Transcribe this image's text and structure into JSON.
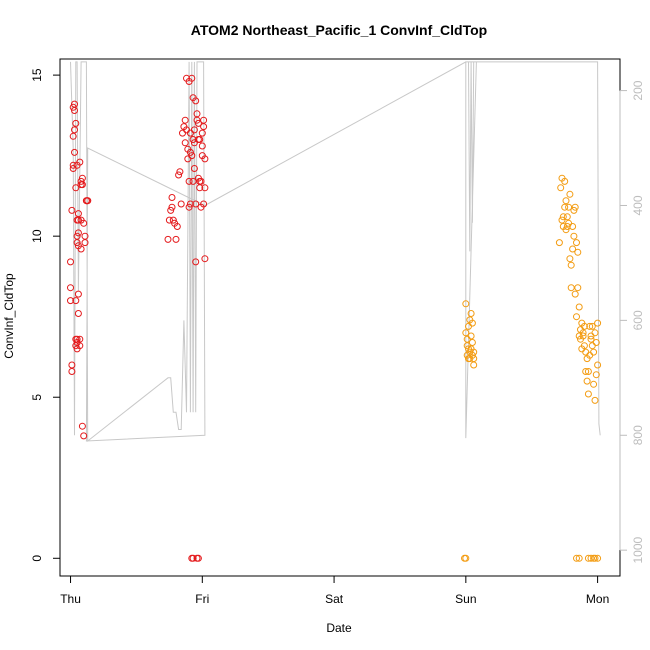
{
  "chart_data": {
    "type": "scatter",
    "title": "ATOM2 Northeast_Pacific_1 ConvInf_CldTop",
    "xlabel": "Date",
    "ylabel": "ConvInf_CldTop",
    "x_ticks": [
      "Thu",
      "Fri",
      "Sat",
      "Sun",
      "Mon"
    ],
    "xlim": [
      -0.08,
      4.17
    ],
    "y_ticks": [
      0,
      5,
      10,
      15
    ],
    "ylim": [
      -0.55,
      15.5
    ],
    "y2_ticks": [
      200,
      400,
      600,
      800,
      1000
    ],
    "y2lim": [
      1045,
      145
    ],
    "y2_reversed": true,
    "grid": false,
    "colors": {
      "series_red": "#e41a1c",
      "series_orange": "#f39c12",
      "pressure_line": "#c8c8c8",
      "right_axis": "#bdbdbd",
      "frame": "#000000"
    },
    "series": [
      {
        "color": "#e41a1c",
        "x": [
          0.0,
          0.0,
          0.0,
          0.01,
          0.01,
          0.01,
          0.02,
          0.02,
          0.02,
          0.02,
          0.03,
          0.03,
          0.03,
          0.03,
          0.04,
          0.04,
          0.04,
          0.04,
          0.04,
          0.05,
          0.05,
          0.05,
          0.05,
          0.05,
          0.05,
          0.05,
          0.06,
          0.06,
          0.06,
          0.06,
          0.06,
          0.06,
          0.07,
          0.07,
          0.07,
          0.08,
          0.08,
          0.08,
          0.08,
          0.09,
          0.09,
          0.09,
          0.1,
          0.1,
          0.11,
          0.11,
          0.12,
          0.12,
          0.13,
          0.13,
          0.74,
          0.75,
          0.76,
          0.77,
          0.77,
          0.78,
          0.79,
          0.8,
          0.81,
          0.82,
          0.83,
          0.84,
          0.85,
          0.86,
          0.87,
          0.87,
          0.88,
          0.88,
          0.89,
          0.89,
          0.9,
          0.9,
          0.9,
          0.91,
          0.91,
          0.91,
          0.92,
          0.92,
          0.93,
          0.93,
          0.93,
          0.94,
          0.94,
          0.94,
          0.95,
          0.95,
          0.95,
          0.96,
          0.96,
          0.97,
          0.97,
          0.97,
          0.98,
          0.98,
          0.98,
          0.99,
          0.99,
          1.0,
          1.0,
          1.0,
          1.01,
          1.01,
          1.01,
          1.02,
          1.02,
          1.02,
          0.92,
          0.93,
          0.96,
          0.97
        ],
        "y": [
          8.0,
          8.4,
          9.2,
          6.0,
          5.8,
          10.8,
          13.1,
          12.1,
          12.2,
          14.0,
          13.9,
          14.1,
          13.3,
          12.6,
          11.5,
          8.0,
          6.8,
          6.6,
          13.5,
          10.0,
          10.5,
          9.8,
          6.8,
          6.7,
          6.5,
          12.2,
          10.7,
          10.5,
          9.7,
          10.1,
          8.2,
          7.6,
          6.8,
          6.6,
          12.3,
          11.7,
          10.5,
          9.6,
          11.6,
          11.8,
          11.6,
          4.1,
          3.8,
          10.4,
          9.8,
          10.0,
          11.1,
          11.1,
          11.1,
          11.1,
          9.9,
          10.5,
          10.8,
          11.2,
          10.9,
          10.5,
          10.4,
          9.9,
          10.3,
          11.9,
          12.0,
          11.0,
          13.2,
          13.4,
          13.6,
          12.9,
          13.3,
          14.9,
          12.7,
          12.4,
          10.9,
          11.7,
          14.8,
          13.2,
          11.0,
          12.6,
          12.5,
          14.9,
          14.3,
          13.0,
          11.7,
          12.1,
          12.9,
          13.3,
          9.2,
          14.2,
          11.0,
          13.8,
          13.6,
          13.5,
          11.8,
          13.0,
          11.7,
          13.0,
          11.5,
          11.7,
          10.9,
          13.2,
          12.8,
          12.5,
          13.4,
          11.0,
          13.6,
          9.3,
          12.4,
          11.5,
          0.0,
          0.0,
          0.0,
          0.0
        ]
      },
      {
        "color": "#f39c12",
        "x": [
          3.0,
          3.0,
          3.01,
          3.01,
          3.01,
          3.02,
          3.02,
          3.02,
          3.03,
          3.03,
          3.03,
          3.04,
          3.04,
          3.04,
          3.05,
          3.05,
          3.05,
          3.06,
          3.06,
          3.06,
          2.99,
          3.0,
          3.71,
          3.72,
          3.73,
          3.73,
          3.74,
          3.74,
          3.75,
          3.75,
          3.76,
          3.76,
          3.77,
          3.77,
          3.78,
          3.78,
          3.79,
          3.79,
          3.8,
          3.8,
          3.81,
          3.81,
          3.82,
          3.82,
          3.83,
          3.83,
          3.84,
          3.84,
          3.85,
          3.85,
          3.86,
          3.86,
          3.87,
          3.87,
          3.88,
          3.88,
          3.89,
          3.89,
          3.9,
          3.9,
          3.91,
          3.91,
          3.92,
          3.92,
          3.93,
          3.93,
          3.94,
          3.94,
          3.95,
          3.95,
          3.96,
          3.96,
          3.97,
          3.97,
          3.98,
          3.98,
          3.99,
          3.99,
          4.0,
          4.0,
          3.84,
          3.86,
          3.93,
          3.95,
          3.97,
          3.98,
          4.0
        ],
        "y": [
          7.9,
          7.0,
          6.8,
          6.6,
          6.3,
          6.2,
          6.5,
          7.2,
          6.4,
          6.2,
          7.4,
          7.6,
          6.5,
          6.9,
          6.7,
          6.3,
          7.3,
          6.2,
          6.4,
          6.0,
          0.0,
          0.0,
          9.8,
          11.5,
          10.5,
          11.8,
          10.3,
          10.6,
          11.7,
          10.9,
          10.2,
          11.1,
          10.6,
          10.3,
          10.4,
          10.9,
          9.3,
          11.3,
          8.4,
          9.1,
          10.3,
          9.6,
          10.0,
          10.8,
          10.9,
          8.2,
          9.8,
          7.5,
          8.4,
          9.5,
          6.9,
          7.8,
          6.8,
          7.1,
          7.3,
          6.5,
          7.0,
          6.9,
          7.2,
          6.6,
          6.4,
          5.8,
          6.2,
          5.5,
          5.1,
          5.8,
          7.2,
          6.3,
          6.9,
          6.8,
          7.2,
          6.6,
          6.4,
          5.4,
          7.0,
          4.9,
          5.7,
          6.7,
          6.0,
          7.3,
          0.0,
          0.0,
          0.0,
          0.0,
          0.0,
          0.0,
          0.0
        ]
      }
    ],
    "reference_line": {
      "name": "pressure",
      "axis": "right",
      "x": [
        0.0,
        0.02,
        0.03,
        0.04,
        0.05,
        0.06,
        0.08,
        0.09,
        0.1,
        0.12,
        0.13,
        0.74,
        0.76,
        0.78,
        0.8,
        0.82,
        0.84,
        0.86,
        0.88,
        0.9,
        0.91,
        0.92,
        0.93,
        0.94,
        0.95,
        0.96,
        0.97,
        0.98,
        0.99,
        1.0,
        1.01,
        1.02,
        0.12,
        0.13,
        1.02,
        3.0,
        3.02,
        3.03,
        3.04,
        3.05,
        3.06,
        3.07,
        3.08,
        3.0,
        3.0,
        3.71,
        3.75,
        3.8,
        3.85,
        3.88,
        3.9,
        3.93,
        3.95,
        3.98,
        4.0,
        4.01,
        4.02
      ],
      "y": [
        150,
        300,
        800,
        150,
        150,
        550,
        150,
        150,
        150,
        150,
        810,
        700,
        700,
        760,
        760,
        790,
        790,
        600,
        760,
        150,
        760,
        150,
        760,
        150,
        760,
        150,
        150,
        150,
        150,
        150,
        150,
        800,
        810,
        300,
        400,
        150,
        150,
        480,
        150,
        430,
        150,
        150,
        150,
        805,
        150,
        150,
        150,
        150,
        150,
        150,
        150,
        150,
        150,
        150,
        150,
        780,
        800
      ]
    }
  }
}
